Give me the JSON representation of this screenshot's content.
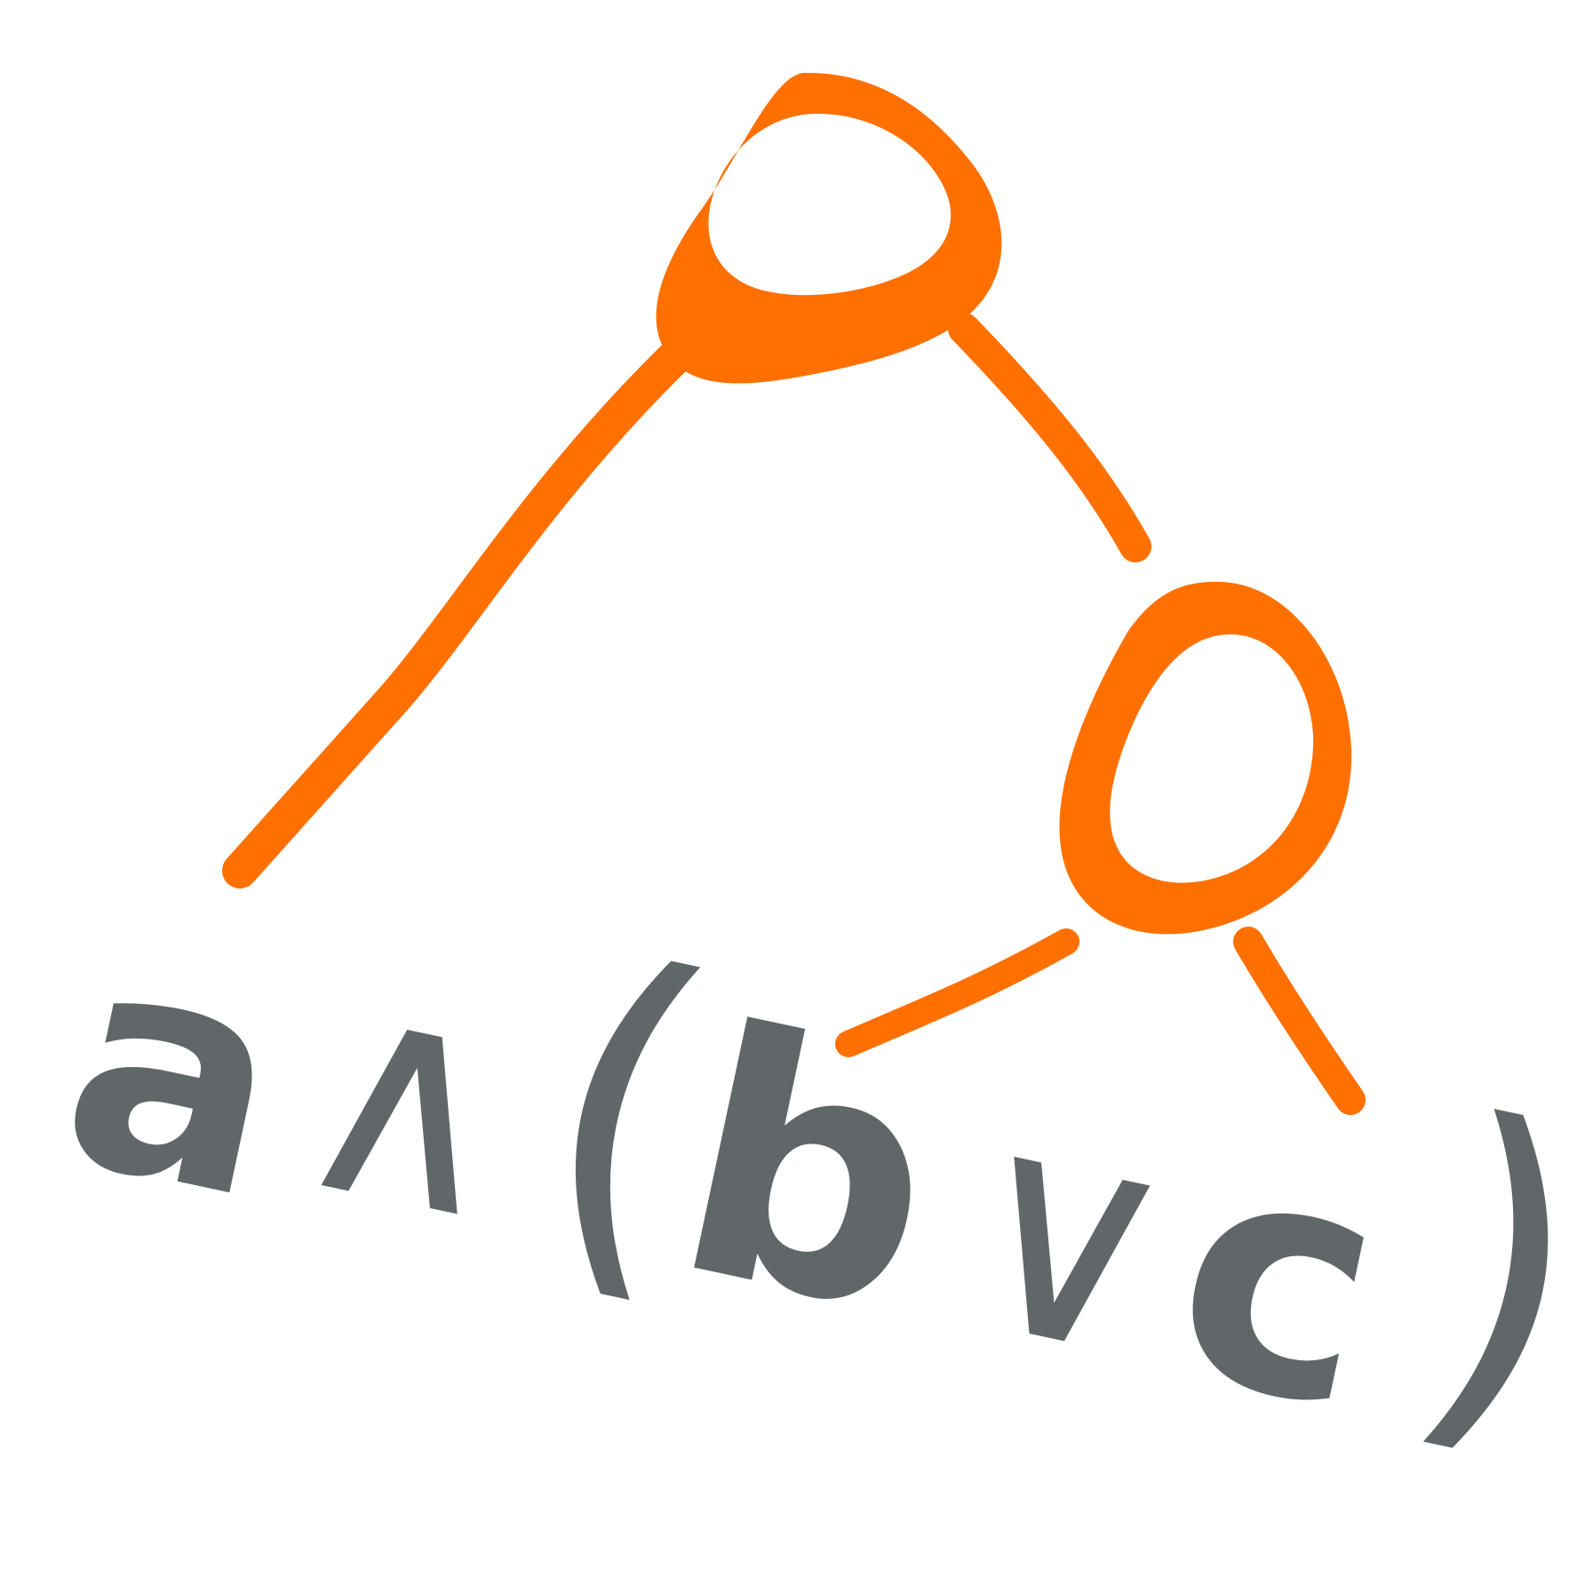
{
  "logo": {
    "formula_glyphs": [
      "a",
      "∧",
      "(",
      "b",
      "∨",
      "c",
      ")"
    ],
    "colors": {
      "tree": "#FF7000",
      "text": "#616769",
      "background": "#FFFFFF"
    },
    "icon": "logic-expression-tree-logo"
  }
}
